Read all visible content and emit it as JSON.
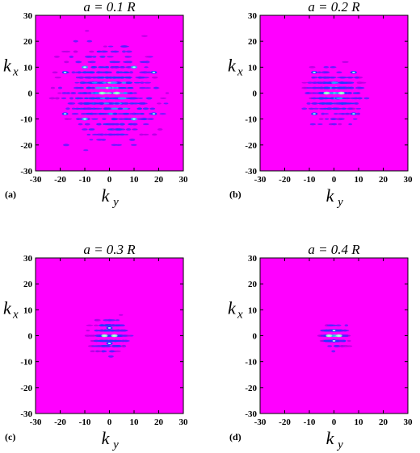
{
  "chart_data": [
    {
      "type": "heatmap",
      "panel_label": "(a)",
      "title": "a = 0.1 R",
      "xlabel": "k",
      "xlabel_sub": "y",
      "ylabel": "k",
      "ylabel_sub": "x",
      "xlim": [
        -30,
        30
      ],
      "ylim": [
        -30,
        30
      ],
      "xticks": [
        "-30",
        "-20",
        "-10",
        "0",
        "10",
        "20",
        "30"
      ],
      "yticks": [
        "-30",
        "-20",
        "-10",
        "0",
        "10",
        "20",
        "30"
      ],
      "background_color": "#ff00ff",
      "spread": 1.0,
      "peaks": [
        {
          "x": -10,
          "y": 10,
          "v": 0.9
        },
        {
          "x": 10,
          "y": 10,
          "v": 0.9
        },
        {
          "x": -10,
          "y": -10,
          "v": 0.9
        },
        {
          "x": 10,
          "y": -10,
          "v": 0.9
        },
        {
          "x": -3,
          "y": 0,
          "v": 1.0
        },
        {
          "x": 3,
          "y": 0,
          "v": 1.0
        },
        {
          "x": -18,
          "y": 8,
          "v": 0.7
        },
        {
          "x": 18,
          "y": 8,
          "v": 0.7
        },
        {
          "x": -18,
          "y": -8,
          "v": 0.7
        },
        {
          "x": 18,
          "y": -8,
          "v": 0.7
        }
      ]
    },
    {
      "type": "heatmap",
      "panel_label": "(b)",
      "title": "a = 0.2 R",
      "xlabel": "k",
      "xlabel_sub": "y",
      "ylabel": "k",
      "ylabel_sub": "x",
      "xlim": [
        -30,
        30
      ],
      "ylim": [
        -30,
        30
      ],
      "xticks": [
        "-30",
        "-20",
        "-10",
        "0",
        "10",
        "20",
        "30"
      ],
      "yticks": [
        "-30",
        "-20",
        "-10",
        "0",
        "10",
        "20",
        "30"
      ],
      "background_color": "#ff00ff",
      "spread": 0.55,
      "peaks": [
        {
          "x": -3,
          "y": 0,
          "v": 1.0
        },
        {
          "x": 3,
          "y": 0,
          "v": 1.0
        },
        {
          "x": -8,
          "y": 8,
          "v": 0.8
        },
        {
          "x": 8,
          "y": 8,
          "v": 0.8
        },
        {
          "x": -8,
          "y": -8,
          "v": 0.8
        },
        {
          "x": 8,
          "y": -8,
          "v": 0.8
        }
      ]
    },
    {
      "type": "heatmap",
      "panel_label": "(c)",
      "title": "a = 0.3 R",
      "xlabel": "k",
      "xlabel_sub": "y",
      "ylabel": "k",
      "ylabel_sub": "x",
      "xlim": [
        -30,
        30
      ],
      "ylim": [
        -30,
        30
      ],
      "xticks": [
        "-30",
        "-20",
        "-10",
        "0",
        "10",
        "20",
        "30"
      ],
      "yticks": [
        "-30",
        "-20",
        "-10",
        "0",
        "10",
        "20",
        "30"
      ],
      "background_color": "#ff00ff",
      "spread": 0.35,
      "peaks": [
        {
          "x": -2,
          "y": 0,
          "v": 1.0
        },
        {
          "x": 2,
          "y": 0,
          "v": 1.0
        },
        {
          "x": 0,
          "y": 3,
          "v": 0.7
        },
        {
          "x": 0,
          "y": -3,
          "v": 0.7
        }
      ]
    },
    {
      "type": "heatmap",
      "panel_label": "(d)",
      "title": "a = 0.4 R",
      "xlabel": "k",
      "xlabel_sub": "y",
      "ylabel": "k",
      "ylabel_sub": "x",
      "xlim": [
        -30,
        30
      ],
      "ylim": [
        -30,
        30
      ],
      "xticks": [
        "-30",
        "-20",
        "-10",
        "0",
        "10",
        "20",
        "30"
      ],
      "yticks": [
        "-30",
        "-20",
        "-10",
        "0",
        "10",
        "20",
        "30"
      ],
      "background_color": "#ff00ff",
      "spread": 0.25,
      "peaks": [
        {
          "x": -2,
          "y": 0,
          "v": 1.0
        },
        {
          "x": 2,
          "y": 0,
          "v": 1.0
        },
        {
          "x": 0,
          "y": 2,
          "v": 0.7
        },
        {
          "x": 0,
          "y": -2,
          "v": 0.7
        }
      ]
    }
  ]
}
